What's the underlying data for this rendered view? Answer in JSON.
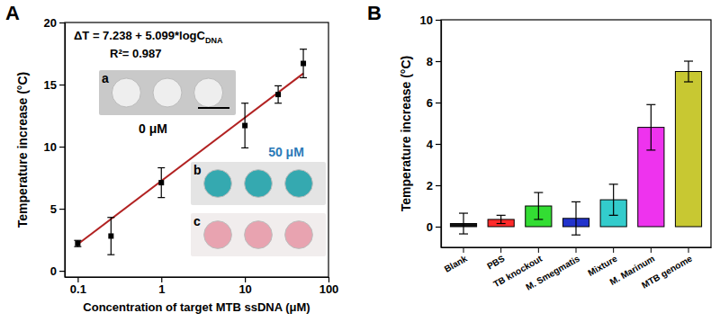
{
  "chart_data": [
    {
      "type": "scatter",
      "title": "A",
      "x_label": "Concentration of target MTB ssDNA (μM)",
      "y_label": "Temperature increase (°C)",
      "log": "x",
      "xlim": [
        0.07,
        100
      ],
      "xticks": [
        0.1,
        1,
        10,
        100
      ],
      "ylim": [
        -0.5,
        20
      ],
      "yticks": [
        0,
        5,
        10,
        15,
        20
      ],
      "series": [
        {
          "type": "scatter",
          "marker": "square",
          "color": "#000000",
          "x": [
            0.1,
            0.25,
            1,
            10,
            25,
            50
          ],
          "values": [
            2.2,
            2.8,
            7.1,
            11.7,
            14.2,
            16.7
          ],
          "errors": [
            0.25,
            1.5,
            1.2,
            1.8,
            0.7,
            1.15
          ]
        },
        {
          "type": "line",
          "color": "#b22222",
          "x": [
            0.1,
            50
          ],
          "values": [
            2.14,
            15.9
          ]
        }
      ],
      "annotations": [
        {
          "text": "ΔT = 7.238 + 5.099*logC",
          "subscript": "DNA"
        },
        "R²= 0.987",
        "a",
        "0 μM",
        "b",
        "50 μM",
        "c"
      ]
    },
    {
      "type": "bar",
      "title": "B",
      "y_label": "Temperature increase (°C)",
      "categories": [
        "Blank",
        "PBS",
        "TB knockout",
        "M. Smegmatis",
        "Mixture",
        "M. Marinum",
        "MTB genome"
      ],
      "values": [
        0.15,
        0.35,
        1.0,
        0.4,
        1.3,
        4.8,
        7.5
      ],
      "errors": [
        0.5,
        0.2,
        0.65,
        0.8,
        0.75,
        1.1,
        0.5
      ],
      "colors": [
        "#111111",
        "#ff2a2a",
        "#33dd33",
        "#2233cc",
        "#33cccc",
        "#ee33ee",
        "#c8c832"
      ],
      "ylim": [
        -1,
        10
      ],
      "yticks": [
        0,
        2,
        4,
        6,
        8,
        10
      ]
    }
  ]
}
